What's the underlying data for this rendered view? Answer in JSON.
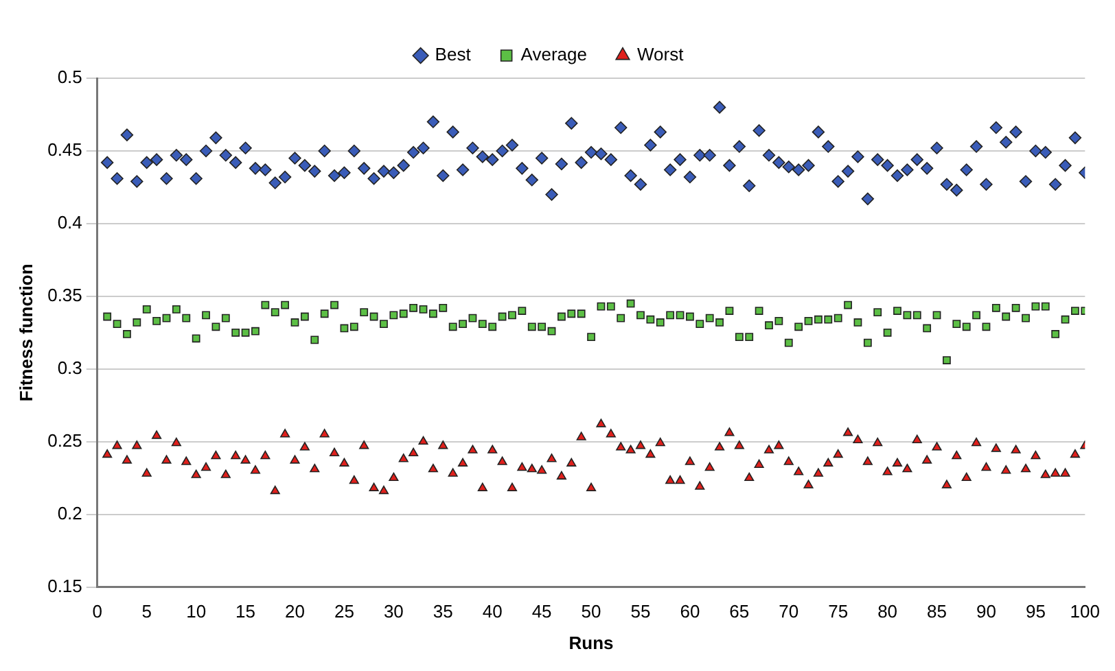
{
  "chart_data": {
    "type": "scatter",
    "xlabel": "Runs",
    "ylabel": "Fitness function",
    "x": [
      1,
      2,
      3,
      4,
      5,
      6,
      7,
      8,
      9,
      10,
      11,
      12,
      13,
      14,
      15,
      16,
      17,
      18,
      19,
      20,
      21,
      22,
      23,
      24,
      25,
      26,
      27,
      28,
      29,
      30,
      31,
      32,
      33,
      34,
      35,
      36,
      37,
      38,
      39,
      40,
      41,
      42,
      43,
      44,
      45,
      46,
      47,
      48,
      49,
      50,
      51,
      52,
      53,
      54,
      55,
      56,
      57,
      58,
      59,
      60,
      61,
      62,
      63,
      64,
      65,
      66,
      67,
      68,
      69,
      70,
      71,
      72,
      73,
      74,
      75,
      76,
      77,
      78,
      79,
      80,
      81,
      82,
      83,
      84,
      85,
      86,
      87,
      88,
      89,
      90,
      91,
      92,
      93,
      94,
      95,
      96,
      97,
      98,
      99,
      100
    ],
    "series": [
      {
        "name": "Best",
        "color": "#3a5cb8",
        "marker": "diamond",
        "values": [
          0.442,
          0.431,
          0.461,
          0.429,
          0.442,
          0.444,
          0.431,
          0.447,
          0.444,
          0.431,
          0.45,
          0.459,
          0.447,
          0.442,
          0.452,
          0.438,
          0.437,
          0.428,
          0.432,
          0.445,
          0.44,
          0.436,
          0.45,
          0.433,
          0.435,
          0.45,
          0.438,
          0.431,
          0.436,
          0.435,
          0.44,
          0.449,
          0.452,
          0.47,
          0.433,
          0.463,
          0.437,
          0.452,
          0.446,
          0.444,
          0.45,
          0.454,
          0.438,
          0.43,
          0.445,
          0.42,
          0.441,
          0.469,
          0.442,
          0.449,
          0.448,
          0.444,
          0.466,
          0.433,
          0.427,
          0.454,
          0.463,
          0.437,
          0.444,
          0.432,
          0.447,
          0.447,
          0.48,
          0.44,
          0.453,
          0.426,
          0.464,
          0.447,
          0.442,
          0.439,
          0.437,
          0.44,
          0.463,
          0.453,
          0.429,
          0.436,
          0.446,
          0.417,
          0.444,
          0.44,
          0.433,
          0.437,
          0.444,
          0.438,
          0.452,
          0.427,
          0.423,
          0.437,
          0.453,
          0.427,
          0.466,
          0.456,
          0.463,
          0.429,
          0.45,
          0.449,
          0.427,
          0.44,
          0.459,
          0.435
        ]
      },
      {
        "name": "Average",
        "color": "#5cbf45",
        "marker": "square",
        "values": [
          0.336,
          0.331,
          0.324,
          0.332,
          0.341,
          0.333,
          0.335,
          0.341,
          0.335,
          0.321,
          0.337,
          0.329,
          0.335,
          0.325,
          0.325,
          0.326,
          0.344,
          0.339,
          0.344,
          0.332,
          0.336,
          0.32,
          0.338,
          0.344,
          0.328,
          0.329,
          0.339,
          0.336,
          0.331,
          0.337,
          0.338,
          0.342,
          0.341,
          0.338,
          0.342,
          0.329,
          0.331,
          0.335,
          0.331,
          0.329,
          0.336,
          0.337,
          0.34,
          0.329,
          0.329,
          0.326,
          0.336,
          0.338,
          0.338,
          0.322,
          0.343,
          0.343,
          0.335,
          0.345,
          0.337,
          0.334,
          0.332,
          0.337,
          0.337,
          0.336,
          0.331,
          0.335,
          0.332,
          0.34,
          0.322,
          0.322,
          0.34,
          0.33,
          0.333,
          0.318,
          0.329,
          0.333,
          0.334,
          0.334,
          0.335,
          0.344,
          0.332,
          0.318,
          0.339,
          0.325,
          0.34,
          0.337,
          0.337,
          0.328,
          0.337,
          0.306,
          0.331,
          0.329,
          0.337,
          0.329,
          0.342,
          0.336,
          0.342,
          0.335,
          0.343,
          0.343,
          0.324,
          0.334,
          0.34,
          0.34
        ]
      },
      {
        "name": "Worst",
        "color": "#e0201c",
        "marker": "triangle",
        "values": [
          0.241,
          0.247,
          0.237,
          0.247,
          0.228,
          0.254,
          0.237,
          0.249,
          0.236,
          0.227,
          0.232,
          0.24,
          0.227,
          0.24,
          0.237,
          0.23,
          0.24,
          0.216,
          0.255,
          0.237,
          0.246,
          0.231,
          0.255,
          0.242,
          0.235,
          0.223,
          0.247,
          0.218,
          0.216,
          0.225,
          0.238,
          0.242,
          0.25,
          0.231,
          0.247,
          0.228,
          0.235,
          0.244,
          0.218,
          0.244,
          0.236,
          0.218,
          0.232,
          0.231,
          0.23,
          0.238,
          0.226,
          0.235,
          0.253,
          0.218,
          0.262,
          0.255,
          0.246,
          0.244,
          0.247,
          0.241,
          0.249,
          0.223,
          0.223,
          0.236,
          0.219,
          0.232,
          0.246,
          0.256,
          0.247,
          0.225,
          0.234,
          0.244,
          0.247,
          0.236,
          0.229,
          0.22,
          0.228,
          0.235,
          0.241,
          0.256,
          0.251,
          0.236,
          0.249,
          0.229,
          0.235,
          0.231,
          0.251,
          0.237,
          0.246,
          0.22,
          0.24,
          0.225,
          0.249,
          0.232,
          0.245,
          0.23,
          0.244,
          0.231,
          0.24,
          0.227,
          0.228,
          0.228,
          0.241,
          0.247
        ]
      }
    ],
    "xlim": [
      0,
      100
    ],
    "xticks": [
      0,
      5,
      10,
      15,
      20,
      25,
      30,
      35,
      40,
      45,
      50,
      55,
      60,
      65,
      70,
      75,
      80,
      85,
      90,
      95,
      100
    ],
    "ylim": [
      0.15,
      0.5
    ],
    "yticks": [
      0.15,
      0.2,
      0.25,
      0.3,
      0.35,
      0.4,
      0.45,
      0.5
    ],
    "grid": "y",
    "legend": "top"
  }
}
